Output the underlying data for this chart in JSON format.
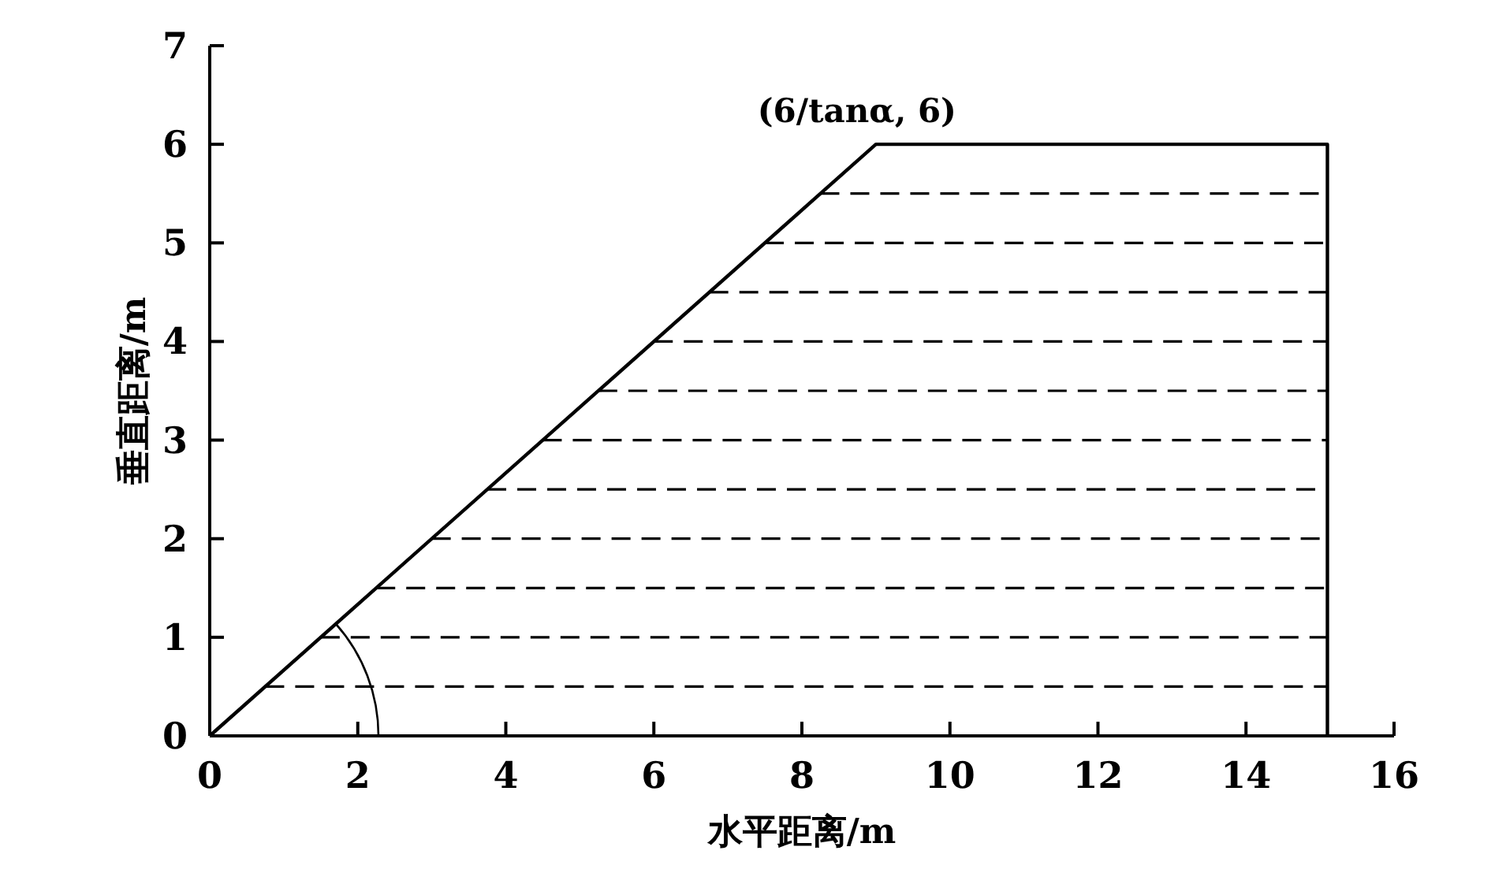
{
  "chart_data": {
    "type": "line",
    "xlabel": "水平距离/m",
    "ylabel": "垂直距离/m",
    "xlim": [
      0,
      16
    ],
    "ylim": [
      0,
      7
    ],
    "xticks": [
      0,
      2,
      4,
      6,
      8,
      10,
      12,
      14,
      16
    ],
    "yticks": [
      0,
      1,
      2,
      3,
      4,
      5,
      6,
      7
    ],
    "annotations": [
      {
        "text": "(6/tanα, 6)",
        "x": 9,
        "y": 6
      }
    ],
    "series": [
      {
        "color": "#000000",
        "line_style": "solid",
        "x": [
          0,
          9,
          15.1,
          15.1
        ],
        "values": [
          0,
          6,
          6,
          0
        ]
      },
      {
        "color": "#000000",
        "line_style": "dashed",
        "x": [
          0.75,
          15.1
        ],
        "values": [
          0.5,
          0.5
        ]
      },
      {
        "color": "#000000",
        "line_style": "dashed",
        "x": [
          1.5,
          15.1
        ],
        "values": [
          1,
          1
        ]
      },
      {
        "color": "#000000",
        "line_style": "dashed",
        "x": [
          2.25,
          15.1
        ],
        "values": [
          1.5,
          1.5
        ]
      },
      {
        "color": "#000000",
        "line_style": "dashed",
        "x": [
          3,
          15.1
        ],
        "values": [
          2,
          2
        ]
      },
      {
        "color": "#000000",
        "line_style": "dashed",
        "x": [
          3.75,
          15.1
        ],
        "values": [
          2.5,
          2.5
        ]
      },
      {
        "color": "#000000",
        "line_style": "dashed",
        "x": [
          4.5,
          15.1
        ],
        "values": [
          3,
          3
        ]
      },
      {
        "color": "#000000",
        "line_style": "dashed",
        "x": [
          5.25,
          15.1
        ],
        "values": [
          3.5,
          3.5
        ]
      },
      {
        "color": "#000000",
        "line_style": "dashed",
        "x": [
          6,
          15.1
        ],
        "values": [
          4,
          4
        ]
      },
      {
        "color": "#000000",
        "line_style": "dashed",
        "x": [
          6.75,
          15.1
        ],
        "values": [
          4.5,
          4.5
        ]
      },
      {
        "color": "#000000",
        "line_style": "dashed",
        "x": [
          7.5,
          15.1
        ],
        "values": [
          5,
          5
        ]
      },
      {
        "color": "#000000",
        "line_style": "dashed",
        "x": [
          8.25,
          15.1
        ],
        "values": [
          5.5,
          5.5
        ]
      }
    ]
  }
}
